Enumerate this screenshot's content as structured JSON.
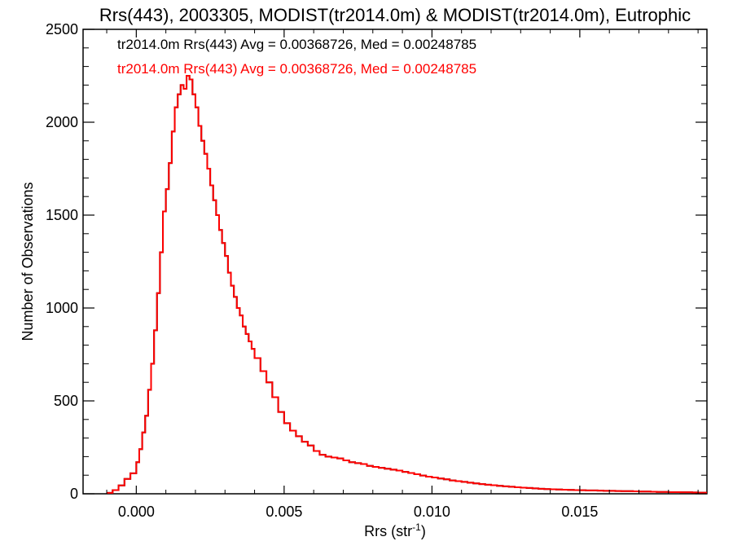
{
  "chart_data": {
    "type": "histogram-step",
    "title": "Rrs(443), 2003305, MODIST(tr2014.0m) & MODIST(tr2014.0m), Eutrophic",
    "xlabel_main": "Rrs (str",
    "xlabel_sup": "-1",
    "xlabel_close": ")",
    "ylabel": "Number of Observations",
    "xlim": [
      -0.0018,
      0.0193
    ],
    "ylim": [
      0,
      2500
    ],
    "xticks": [
      0.0,
      0.005,
      0.01,
      0.015
    ],
    "xtick_labels": [
      "0.000",
      "0.005",
      "0.010",
      "0.015"
    ],
    "yticks": [
      0,
      500,
      1000,
      1500,
      2000,
      2500
    ],
    "ytick_labels": [
      "0",
      "500",
      "1000",
      "1500",
      "2000",
      "2500"
    ],
    "grid": false,
    "annotations": [
      {
        "text": "tr2014.0m Rrs(443) Avg = 0.00368726, Med = 0.00248785",
        "color": "#000000"
      },
      {
        "text": "tr2014.0m Rrs(443) Avg = 0.00368726, Med = 0.00248785",
        "color": "#ff0000"
      }
    ],
    "series": [
      {
        "color": "#000000",
        "values": [
          [
            -0.001,
            5
          ],
          [
            -0.0008,
            20
          ],
          [
            -0.0006,
            45
          ],
          [
            -0.0004,
            80
          ],
          [
            -0.0002,
            110
          ],
          [
            0.0,
            170
          ],
          [
            0.0001,
            240
          ],
          [
            0.0002,
            330
          ],
          [
            0.0003,
            420
          ],
          [
            0.0004,
            560
          ],
          [
            0.0005,
            700
          ],
          [
            0.0006,
            880
          ],
          [
            0.0007,
            1080
          ],
          [
            0.0008,
            1300
          ],
          [
            0.0009,
            1520
          ],
          [
            0.001,
            1640
          ],
          [
            0.0011,
            1780
          ],
          [
            0.0012,
            1950
          ],
          [
            0.0013,
            2080
          ],
          [
            0.0014,
            2150
          ],
          [
            0.0015,
            2200
          ],
          [
            0.0016,
            2180
          ],
          [
            0.0017,
            2250
          ],
          [
            0.0018,
            2230
          ],
          [
            0.0019,
            2150
          ],
          [
            0.002,
            2080
          ],
          [
            0.0021,
            1980
          ],
          [
            0.0022,
            1900
          ],
          [
            0.0023,
            1830
          ],
          [
            0.0024,
            1750
          ],
          [
            0.0025,
            1660
          ],
          [
            0.0026,
            1580
          ],
          [
            0.0027,
            1500
          ],
          [
            0.0028,
            1420
          ],
          [
            0.0029,
            1350
          ],
          [
            0.003,
            1280
          ],
          [
            0.0031,
            1190
          ],
          [
            0.0032,
            1120
          ],
          [
            0.0033,
            1060
          ],
          [
            0.0034,
            1000
          ],
          [
            0.0035,
            960
          ],
          [
            0.0036,
            900
          ],
          [
            0.0037,
            860
          ],
          [
            0.0038,
            820
          ],
          [
            0.0039,
            780
          ],
          [
            0.004,
            730
          ],
          [
            0.0042,
            660
          ],
          [
            0.0044,
            600
          ],
          [
            0.0046,
            520
          ],
          [
            0.0048,
            440
          ],
          [
            0.005,
            380
          ],
          [
            0.0052,
            340
          ],
          [
            0.0054,
            310
          ],
          [
            0.0056,
            280
          ],
          [
            0.0058,
            260
          ],
          [
            0.006,
            230
          ],
          [
            0.0062,
            210
          ],
          [
            0.0064,
            200
          ],
          [
            0.0066,
            195
          ],
          [
            0.0068,
            190
          ],
          [
            0.007,
            180
          ],
          [
            0.0072,
            170
          ],
          [
            0.0074,
            165
          ],
          [
            0.0076,
            160
          ],
          [
            0.0078,
            150
          ],
          [
            0.008,
            145
          ],
          [
            0.0082,
            140
          ],
          [
            0.0084,
            135
          ],
          [
            0.0086,
            130
          ],
          [
            0.0088,
            125
          ],
          [
            0.009,
            118
          ],
          [
            0.0092,
            112
          ],
          [
            0.0094,
            105
          ],
          [
            0.0096,
            98
          ],
          [
            0.0098,
            92
          ],
          [
            0.01,
            88
          ],
          [
            0.0102,
            82
          ],
          [
            0.0104,
            78
          ],
          [
            0.0106,
            72
          ],
          [
            0.0108,
            68
          ],
          [
            0.011,
            64
          ],
          [
            0.0112,
            60
          ],
          [
            0.0114,
            56
          ],
          [
            0.0116,
            52
          ],
          [
            0.0118,
            49
          ],
          [
            0.012,
            46
          ],
          [
            0.0122,
            43
          ],
          [
            0.0124,
            40
          ],
          [
            0.0126,
            38
          ],
          [
            0.0128,
            35
          ],
          [
            0.013,
            33
          ],
          [
            0.0132,
            31
          ],
          [
            0.0134,
            29
          ],
          [
            0.0136,
            27
          ],
          [
            0.0138,
            25
          ],
          [
            0.014,
            24
          ],
          [
            0.0142,
            23
          ],
          [
            0.0144,
            22
          ],
          [
            0.0146,
            21
          ],
          [
            0.0148,
            20
          ],
          [
            0.015,
            19
          ],
          [
            0.0152,
            18
          ],
          [
            0.0154,
            18
          ],
          [
            0.0156,
            17
          ],
          [
            0.0158,
            16
          ],
          [
            0.016,
            16
          ],
          [
            0.0162,
            15
          ],
          [
            0.0164,
            14
          ],
          [
            0.0166,
            14
          ],
          [
            0.0168,
            13
          ],
          [
            0.017,
            12
          ],
          [
            0.0172,
            12
          ],
          [
            0.0174,
            11
          ],
          [
            0.0176,
            10
          ],
          [
            0.0178,
            10
          ],
          [
            0.018,
            9
          ],
          [
            0.0182,
            9
          ],
          [
            0.0184,
            8
          ],
          [
            0.0186,
            8
          ],
          [
            0.0188,
            7
          ],
          [
            0.019,
            6
          ],
          [
            0.0192,
            6
          ]
        ]
      },
      {
        "color": "#ff0000",
        "values": [
          [
            -0.001,
            5
          ],
          [
            -0.0008,
            20
          ],
          [
            -0.0006,
            45
          ],
          [
            -0.0004,
            80
          ],
          [
            -0.0002,
            110
          ],
          [
            0.0,
            170
          ],
          [
            0.0001,
            240
          ],
          [
            0.0002,
            330
          ],
          [
            0.0003,
            420
          ],
          [
            0.0004,
            560
          ],
          [
            0.0005,
            700
          ],
          [
            0.0006,
            880
          ],
          [
            0.0007,
            1080
          ],
          [
            0.0008,
            1300
          ],
          [
            0.0009,
            1520
          ],
          [
            0.001,
            1640
          ],
          [
            0.0011,
            1780
          ],
          [
            0.0012,
            1950
          ],
          [
            0.0013,
            2080
          ],
          [
            0.0014,
            2150
          ],
          [
            0.0015,
            2200
          ],
          [
            0.0016,
            2180
          ],
          [
            0.0017,
            2250
          ],
          [
            0.0018,
            2230
          ],
          [
            0.0019,
            2150
          ],
          [
            0.002,
            2080
          ],
          [
            0.0021,
            1980
          ],
          [
            0.0022,
            1900
          ],
          [
            0.0023,
            1830
          ],
          [
            0.0024,
            1750
          ],
          [
            0.0025,
            1660
          ],
          [
            0.0026,
            1580
          ],
          [
            0.0027,
            1500
          ],
          [
            0.0028,
            1420
          ],
          [
            0.0029,
            1350
          ],
          [
            0.003,
            1280
          ],
          [
            0.0031,
            1190
          ],
          [
            0.0032,
            1120
          ],
          [
            0.0033,
            1060
          ],
          [
            0.0034,
            1000
          ],
          [
            0.0035,
            960
          ],
          [
            0.0036,
            900
          ],
          [
            0.0037,
            860
          ],
          [
            0.0038,
            820
          ],
          [
            0.0039,
            780
          ],
          [
            0.004,
            730
          ],
          [
            0.0042,
            660
          ],
          [
            0.0044,
            600
          ],
          [
            0.0046,
            520
          ],
          [
            0.0048,
            440
          ],
          [
            0.005,
            380
          ],
          [
            0.0052,
            340
          ],
          [
            0.0054,
            310
          ],
          [
            0.0056,
            280
          ],
          [
            0.0058,
            260
          ],
          [
            0.006,
            230
          ],
          [
            0.0062,
            210
          ],
          [
            0.0064,
            200
          ],
          [
            0.0066,
            195
          ],
          [
            0.0068,
            190
          ],
          [
            0.007,
            180
          ],
          [
            0.0072,
            170
          ],
          [
            0.0074,
            165
          ],
          [
            0.0076,
            160
          ],
          [
            0.0078,
            150
          ],
          [
            0.008,
            145
          ],
          [
            0.0082,
            140
          ],
          [
            0.0084,
            135
          ],
          [
            0.0086,
            130
          ],
          [
            0.0088,
            125
          ],
          [
            0.009,
            118
          ],
          [
            0.0092,
            112
          ],
          [
            0.0094,
            105
          ],
          [
            0.0096,
            98
          ],
          [
            0.0098,
            92
          ],
          [
            0.01,
            88
          ],
          [
            0.0102,
            82
          ],
          [
            0.0104,
            78
          ],
          [
            0.0106,
            72
          ],
          [
            0.0108,
            68
          ],
          [
            0.011,
            64
          ],
          [
            0.0112,
            60
          ],
          [
            0.0114,
            56
          ],
          [
            0.0116,
            52
          ],
          [
            0.0118,
            49
          ],
          [
            0.012,
            46
          ],
          [
            0.0122,
            43
          ],
          [
            0.0124,
            40
          ],
          [
            0.0126,
            38
          ],
          [
            0.0128,
            35
          ],
          [
            0.013,
            33
          ],
          [
            0.0132,
            31
          ],
          [
            0.0134,
            29
          ],
          [
            0.0136,
            27
          ],
          [
            0.0138,
            25
          ],
          [
            0.014,
            24
          ],
          [
            0.0142,
            23
          ],
          [
            0.0144,
            22
          ],
          [
            0.0146,
            21
          ],
          [
            0.0148,
            20
          ],
          [
            0.015,
            19
          ],
          [
            0.0152,
            18
          ],
          [
            0.0154,
            18
          ],
          [
            0.0156,
            17
          ],
          [
            0.0158,
            16
          ],
          [
            0.016,
            16
          ],
          [
            0.0162,
            15
          ],
          [
            0.0164,
            14
          ],
          [
            0.0166,
            14
          ],
          [
            0.0168,
            13
          ],
          [
            0.017,
            12
          ],
          [
            0.0172,
            12
          ],
          [
            0.0174,
            11
          ],
          [
            0.0176,
            10
          ],
          [
            0.0178,
            10
          ],
          [
            0.018,
            9
          ],
          [
            0.0182,
            9
          ],
          [
            0.0184,
            8
          ],
          [
            0.0186,
            8
          ],
          [
            0.0188,
            7
          ],
          [
            0.019,
            6
          ],
          [
            0.0192,
            6
          ]
        ]
      }
    ]
  }
}
